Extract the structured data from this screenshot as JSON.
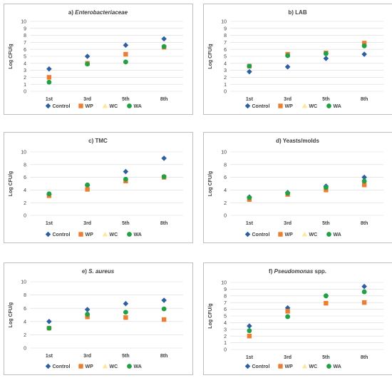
{
  "series_names": [
    "Control",
    "WP",
    "WC",
    "WA"
  ],
  "colors": {
    "Control": "#2e5fa3",
    "WP": "#ed7d31",
    "WC": "#ffe699",
    "WA": "#22a045",
    "frame": "#bfbfbf",
    "grid": "#d9d9d9",
    "text": "#404040"
  },
  "chart_data": [
    {
      "type": "scatter",
      "title_prefix": "a)",
      "title_main": "Enterobacteriaceae",
      "title_italic": true,
      "ylabel": "Log CFU/g",
      "categories": [
        "1st",
        "3rd",
        "5th",
        "8th"
      ],
      "ylim": [
        0,
        10
      ],
      "yticks": [
        0,
        1,
        2,
        3,
        4,
        5,
        6,
        7,
        8,
        9,
        10
      ],
      "grid": true,
      "legend": "bottom",
      "series": [
        {
          "name": "Control",
          "values": [
            3.2,
            5.0,
            6.6,
            7.5
          ]
        },
        {
          "name": "WP",
          "values": [
            2.0,
            4.0,
            5.3,
            6.3
          ]
        },
        {
          "name": "WC",
          "values": [
            null,
            null,
            null,
            null
          ]
        },
        {
          "name": "WA",
          "values": [
            1.3,
            3.9,
            4.2,
            6.4
          ]
        }
      ]
    },
    {
      "type": "scatter",
      "title_prefix": "b)",
      "title_main": "LAB",
      "title_italic": false,
      "ylabel": "Log CFU/g",
      "categories": [
        "1st",
        "3rd",
        "5th",
        "8th"
      ],
      "ylim": [
        0,
        10
      ],
      "yticks": [
        0,
        1,
        2,
        3,
        4,
        5,
        6,
        7,
        8,
        9,
        10
      ],
      "grid": true,
      "legend": "bottom",
      "series": [
        {
          "name": "Control",
          "values": [
            2.8,
            3.5,
            4.7,
            5.3
          ]
        },
        {
          "name": "WP",
          "values": [
            3.6,
            5.3,
            5.5,
            6.9
          ]
        },
        {
          "name": "WC",
          "values": [
            null,
            null,
            5.5,
            null
          ]
        },
        {
          "name": "WA",
          "values": [
            3.6,
            5.1,
            5.4,
            6.5
          ]
        }
      ]
    },
    {
      "type": "scatter",
      "title_prefix": "c)",
      "title_main": "TMC",
      "title_italic": false,
      "ylabel": "Log CFU/g",
      "categories": [
        "1st",
        "3rd",
        "5th",
        "8th"
      ],
      "ylim": [
        0,
        10
      ],
      "yticks": [
        0,
        2,
        4,
        6,
        8,
        10
      ],
      "grid": true,
      "legend": "bottom",
      "series": [
        {
          "name": "Control",
          "values": [
            3.3,
            4.7,
            6.9,
            9.0
          ]
        },
        {
          "name": "WP",
          "values": [
            3.1,
            4.1,
            5.4,
            6.0
          ]
        },
        {
          "name": "WC",
          "values": [
            null,
            null,
            null,
            null
          ]
        },
        {
          "name": "WA",
          "values": [
            3.4,
            4.8,
            5.7,
            6.1
          ]
        }
      ]
    },
    {
      "type": "scatter",
      "title_prefix": "d)",
      "title_main": "Yeasts/molds",
      "title_italic": false,
      "ylabel": "Log CFU/g",
      "categories": [
        "1st",
        "3rd",
        "5th",
        "8th"
      ],
      "ylim": [
        0,
        10
      ],
      "yticks": [
        0,
        2,
        4,
        6,
        8,
        10
      ],
      "grid": true,
      "legend": "bottom",
      "series": [
        {
          "name": "Control",
          "values": [
            2.9,
            3.6,
            4.6,
            6.0
          ]
        },
        {
          "name": "WP",
          "values": [
            2.5,
            3.3,
            4.0,
            4.8
          ]
        },
        {
          "name": "WC",
          "values": [
            null,
            null,
            null,
            null
          ]
        },
        {
          "name": "WA",
          "values": [
            2.8,
            3.5,
            4.4,
            5.4
          ]
        }
      ]
    },
    {
      "type": "scatter",
      "title_prefix": "e)",
      "title_main": "S. aureus",
      "title_italic": true,
      "ylabel": "Log CFU/g",
      "categories": [
        "1st",
        "3rd",
        "5th",
        "8th"
      ],
      "ylim": [
        0,
        10
      ],
      "yticks": [
        0,
        2,
        4,
        6,
        8,
        10
      ],
      "grid": true,
      "legend": "bottom",
      "series": [
        {
          "name": "Control",
          "values": [
            4.0,
            5.8,
            6.7,
            7.2
          ]
        },
        {
          "name": "WP",
          "values": [
            3.0,
            4.7,
            4.6,
            4.3
          ]
        },
        {
          "name": "WC",
          "values": [
            null,
            null,
            null,
            null
          ]
        },
        {
          "name": "WA",
          "values": [
            3.0,
            5.1,
            5.4,
            5.9
          ]
        }
      ]
    },
    {
      "type": "scatter",
      "title_prefix": "f)",
      "title_main": "Pseudomonas",
      "title_suffix": "spp.",
      "title_italic": true,
      "ylabel": "Log CFU/g",
      "categories": [
        "1st",
        "3rd",
        "5th",
        "8th"
      ],
      "ylim": [
        0,
        10
      ],
      "yticks": [
        0,
        1,
        2,
        3,
        4,
        5,
        6,
        7,
        8,
        9,
        10
      ],
      "grid": true,
      "legend": "bottom",
      "series": [
        {
          "name": "Control",
          "values": [
            3.5,
            6.2,
            8.0,
            9.4
          ]
        },
        {
          "name": "WP",
          "values": [
            2.0,
            5.7,
            6.9,
            7.0
          ]
        },
        {
          "name": "WC",
          "values": [
            null,
            null,
            null,
            null
          ]
        },
        {
          "name": "WA",
          "values": [
            2.8,
            4.9,
            8.0,
            8.6
          ]
        }
      ]
    }
  ]
}
